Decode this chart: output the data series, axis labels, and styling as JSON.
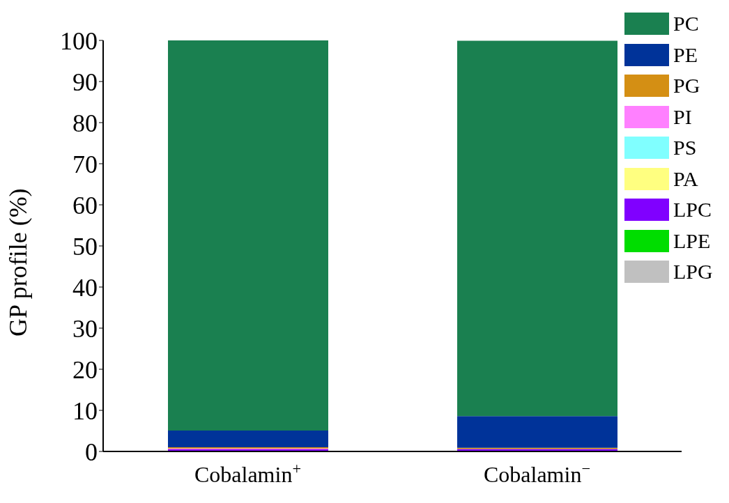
{
  "chart_data": {
    "type": "bar",
    "stacked": true,
    "ylabel": "GP profile (%)",
    "categories": [
      "Cobalamin$^{+}$",
      "Cobalamin$^{−}$"
    ],
    "series": [
      {
        "name": "LPG",
        "color": "#c0c0c0",
        "values": [
          0.1,
          0.1
        ]
      },
      {
        "name": "LPE",
        "color": "#00dd00",
        "values": [
          0,
          0
        ]
      },
      {
        "name": "LPC",
        "color": "#8000ff",
        "values": [
          0.4,
          0.5
        ]
      },
      {
        "name": "PA",
        "color": "#ffff80",
        "values": [
          0,
          0
        ]
      },
      {
        "name": "PS",
        "color": "#80ffff",
        "values": [
          0,
          0
        ]
      },
      {
        "name": "PI",
        "color": "#ff80ff",
        "values": [
          0.2,
          null
        ]
      },
      {
        "name": "PG",
        "color": "#d48f14",
        "values": [
          0.3,
          0.3
        ]
      },
      {
        "name": "PE",
        "color": "#003399",
        "values": [
          4.1,
          7.7
        ]
      },
      {
        "name": "PC",
        "color": "#1a8050",
        "values": [
          94.9,
          91.3
        ]
      }
    ],
    "ylim": [
      0,
      100
    ],
    "yticks": [
      0,
      10,
      20,
      30,
      40,
      50,
      60,
      70,
      80,
      90,
      100
    ],
    "grid": false,
    "legend": "top right"
  }
}
